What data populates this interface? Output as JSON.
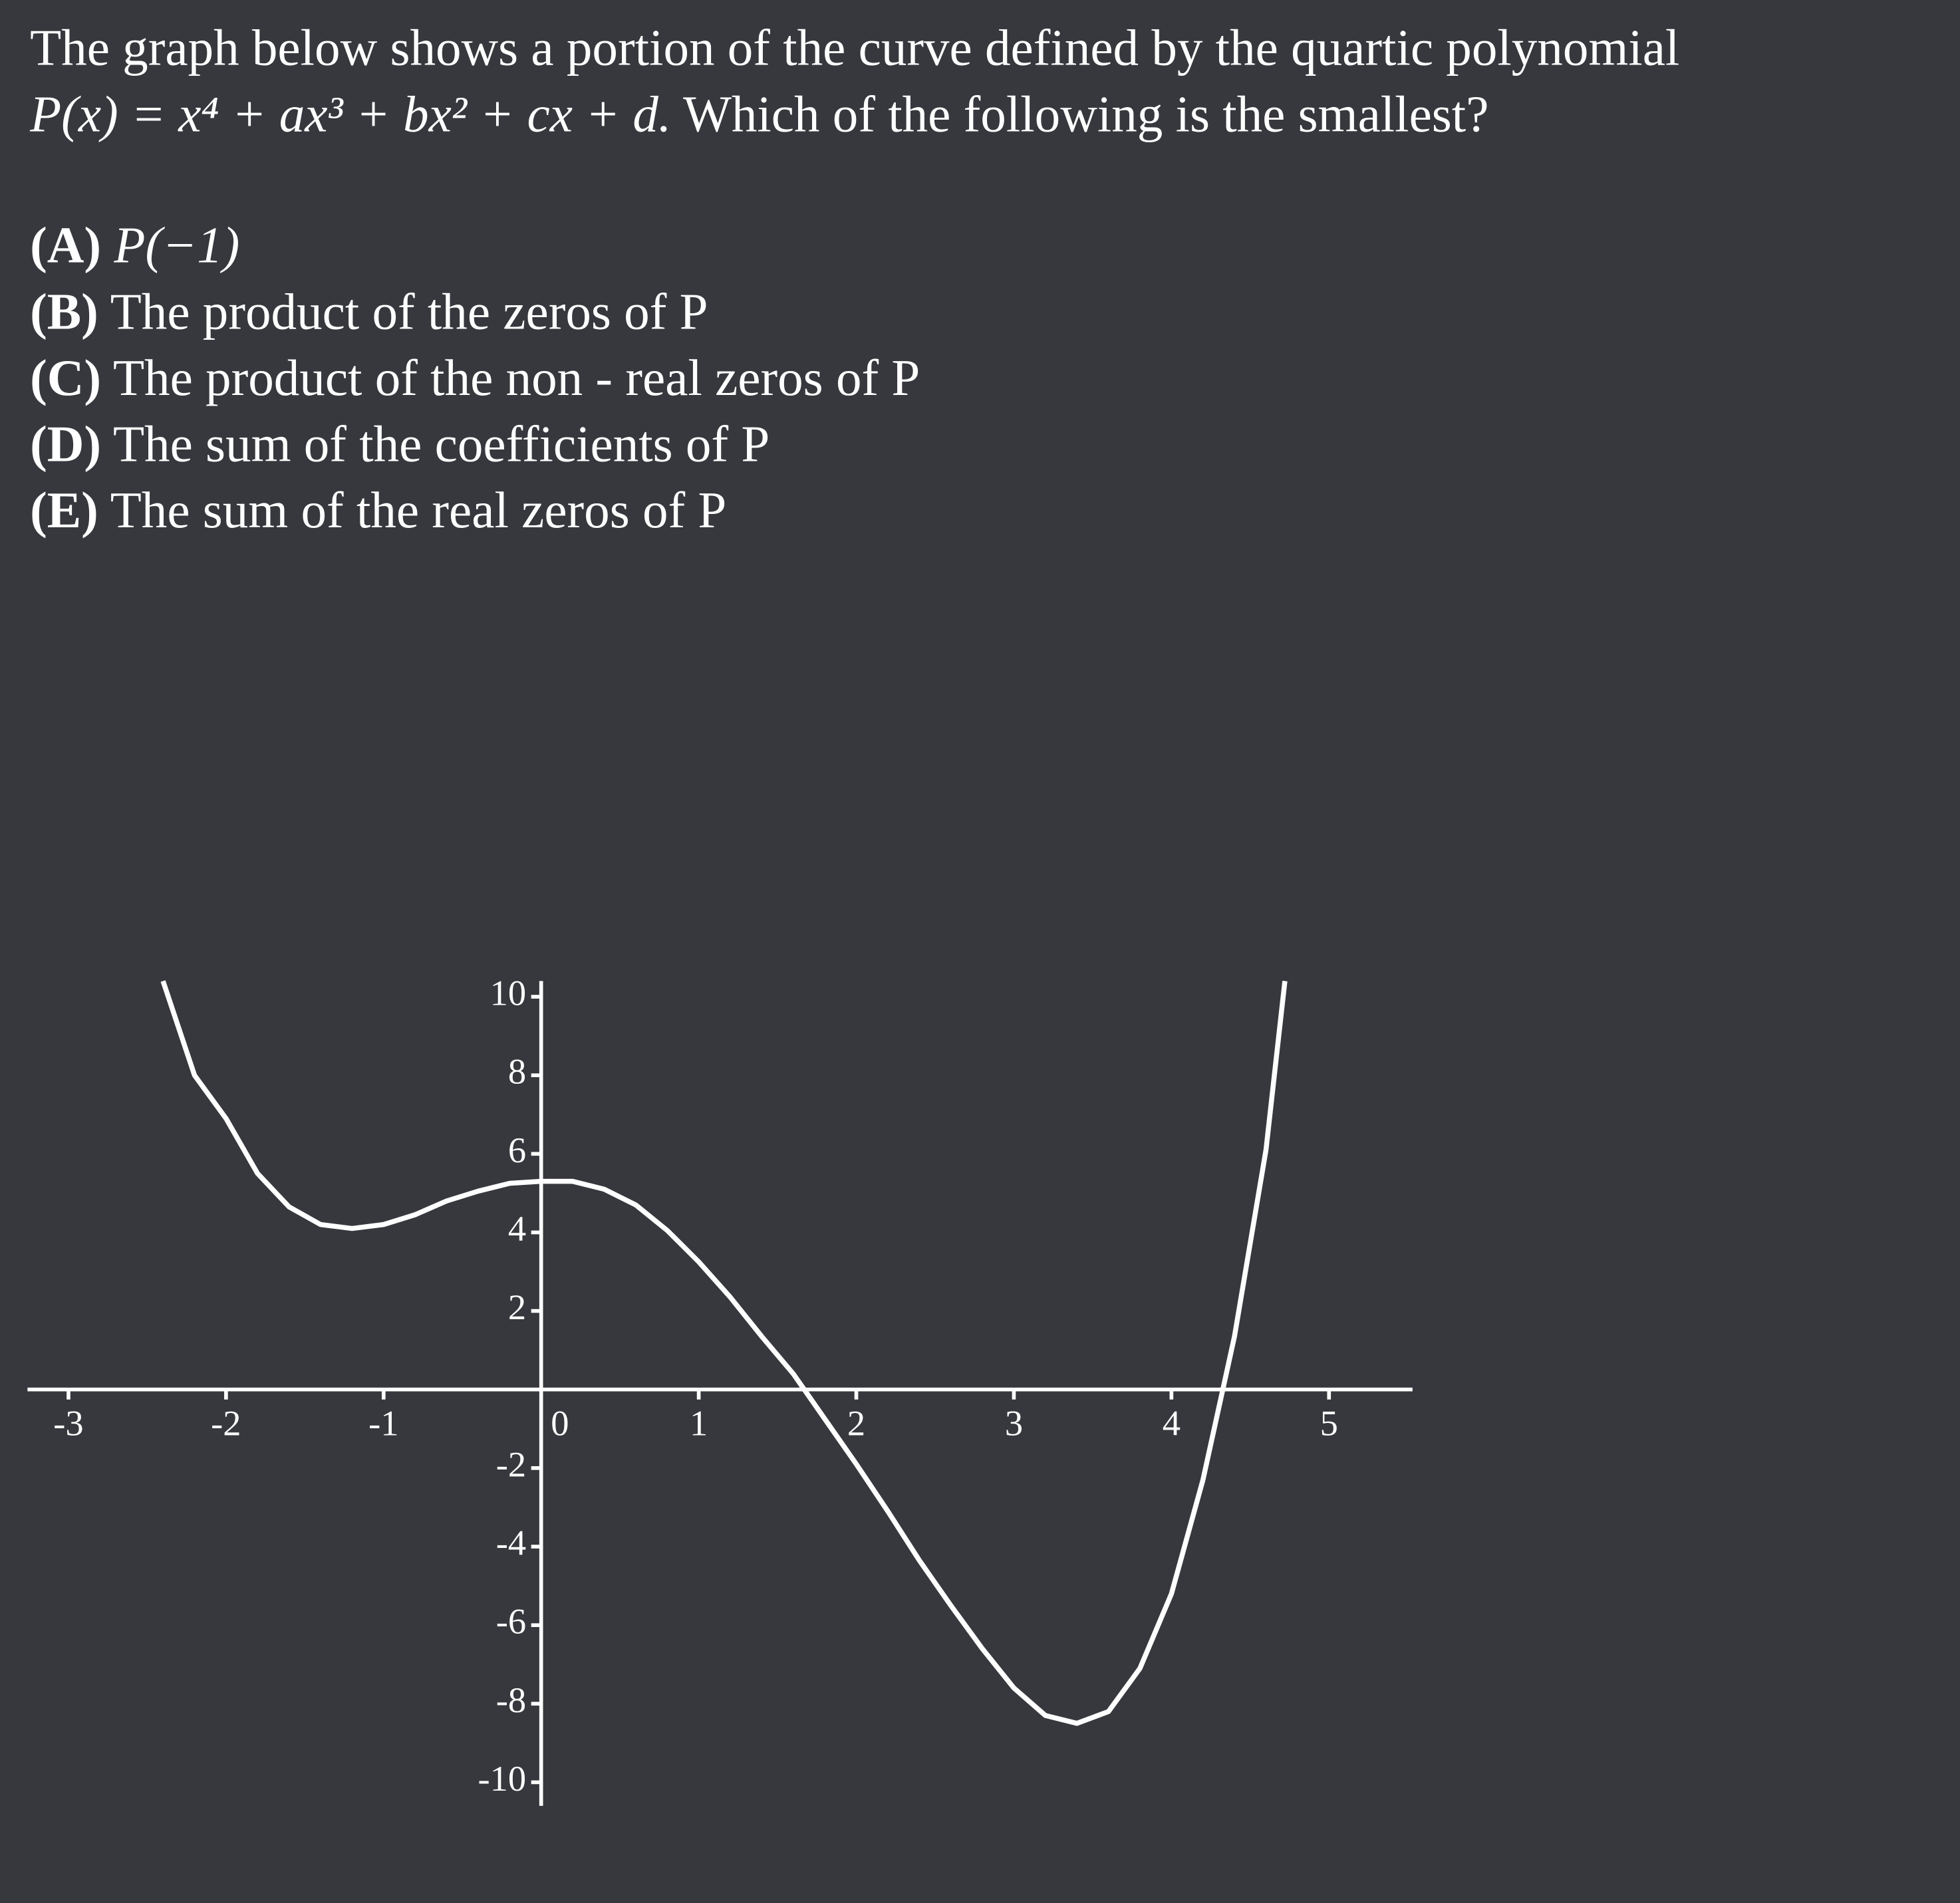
{
  "question": {
    "line1": "The graph below shows a portion of the curve defined by the quartic polynomial",
    "formula": "P(x) = x⁴ + ax³ + bx² + cx + d.",
    "line2": "Which of the following is the smallest?",
    "options": [
      {
        "label": "(A)",
        "text": "P(−1)"
      },
      {
        "label": "(B)",
        "text": "The product of the zeros of P"
      },
      {
        "label": "(C)",
        "text": "The product of the non - real zeros of P"
      },
      {
        "label": "(D)",
        "text": "The sum of the coefficients of P"
      },
      {
        "label": "(E)",
        "text": "The sum of the real zeros of P"
      }
    ]
  },
  "chart_data": {
    "type": "line",
    "color": "#ffffff",
    "x": [
      -2.4,
      -2.2,
      -2.0,
      -1.8,
      -1.6,
      -1.4,
      -1.2,
      -1.0,
      -0.8,
      -0.6,
      -0.4,
      -0.2,
      0,
      0.2,
      0.4,
      0.6,
      0.8,
      1.0,
      1.2,
      1.4,
      1.6,
      1.8,
      2.0,
      2.2,
      2.4,
      2.6,
      2.8,
      3.0,
      3.2,
      3.4,
      3.6,
      3.8,
      4.0,
      4.2,
      4.4,
      4.6,
      4.72
    ],
    "values": [
      10.4,
      8.0,
      6.9,
      5.5,
      4.65,
      4.2,
      4.1,
      4.2,
      4.45,
      4.8,
      5.05,
      5.25,
      5.3,
      5.3,
      5.1,
      4.7,
      4.05,
      3.25,
      2.35,
      1.35,
      0.4,
      -0.75,
      -1.9,
      -3.1,
      -4.35,
      -5.5,
      -6.6,
      -7.6,
      -8.3,
      -8.5,
      -8.2,
      -7.1,
      -5.2,
      -2.3,
      1.35,
      6.1,
      10.4
    ],
    "xlim": [
      -3.26,
      5.53
    ],
    "ylim": [
      -10.6,
      10.4
    ],
    "xticks": [
      -3,
      -2,
      -1,
      0,
      1,
      2,
      3,
      4,
      5
    ],
    "yticks": [
      -10,
      -8,
      -6,
      -4,
      -2,
      2,
      4,
      6,
      8,
      10
    ]
  }
}
